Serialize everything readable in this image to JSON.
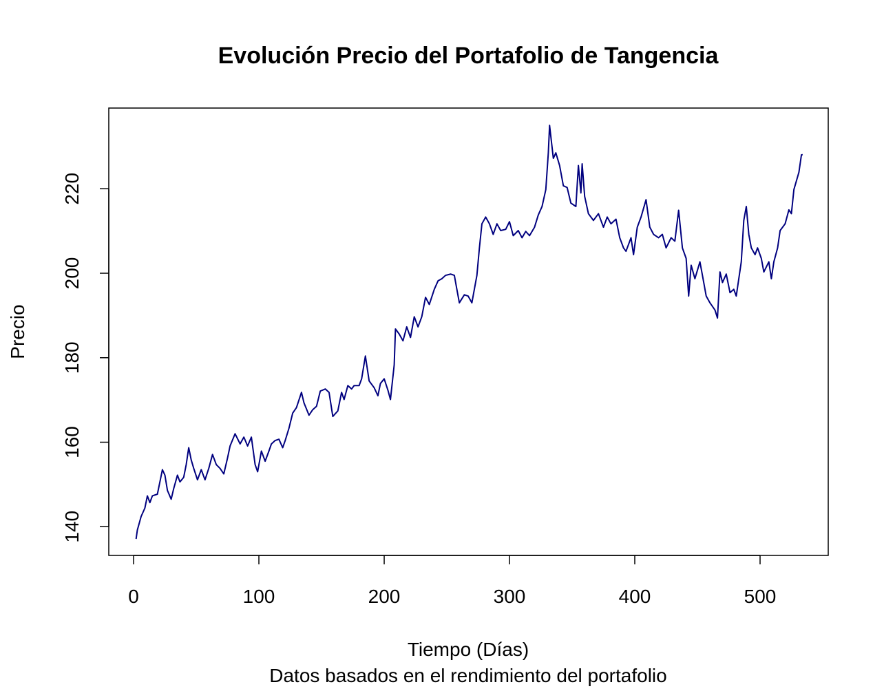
{
  "chart_data": {
    "type": "line",
    "title": "Evolución Precio del Portafolio de Tangencia",
    "x_label": "Tiempo (Días)",
    "subtitle": "Datos basados en el rendimiento del portafolio",
    "y_label": "Precio",
    "xlim": [
      -19.8,
      554.4
    ],
    "ylim": [
      133.2,
      239.1
    ],
    "xticks": [
      0,
      100,
      200,
      300,
      400,
      500
    ],
    "yticks": [
      140,
      160,
      180,
      200,
      220
    ],
    "grid": false,
    "color": "#00007f",
    "x": [
      2,
      3,
      6,
      9,
      11,
      13,
      15,
      19,
      21,
      23,
      25,
      27,
      30,
      32,
      35,
      37,
      40,
      42,
      44,
      46,
      48,
      51,
      54,
      57,
      60,
      63,
      66,
      69,
      72,
      75,
      77,
      81,
      85,
      88,
      91,
      94,
      97,
      99,
      102,
      105,
      108,
      110,
      113,
      116,
      119,
      121,
      124,
      127,
      130,
      134,
      136,
      140,
      143,
      146,
      149,
      153,
      156,
      159,
      163,
      166,
      168,
      171,
      174,
      176,
      180,
      182,
      185,
      188,
      192,
      195,
      197,
      200,
      203,
      205,
      208,
      209,
      212,
      215,
      218,
      221,
      224,
      227,
      230,
      233,
      236,
      240,
      243,
      246,
      249,
      253,
      256,
      258,
      260,
      264,
      267,
      270,
      274,
      276,
      278,
      281,
      284,
      287,
      290,
      293,
      297,
      300,
      303,
      307,
      310,
      313,
      316,
      320,
      323,
      326,
      329,
      331,
      332,
      335,
      337,
      340,
      343,
      346,
      349,
      353,
      355,
      357,
      358,
      360,
      363,
      367,
      371,
      375,
      378,
      381,
      385,
      388,
      391,
      393,
      397,
      399,
      402,
      405,
      409,
      412,
      415,
      419,
      422,
      425,
      429,
      432,
      435,
      438,
      441,
      443,
      445,
      448,
      452,
      454,
      457,
      460,
      464,
      466,
      468,
      470,
      473,
      476,
      479,
      481,
      485,
      487,
      489,
      491,
      493,
      496,
      498,
      501,
      503,
      507,
      509,
      511,
      514,
      516,
      520,
      523,
      525,
      527,
      531,
      533,
      534
    ],
    "values": [
      137.1,
      139.2,
      142.4,
      144.4,
      147.3,
      145.7,
      147.3,
      147.7,
      150.6,
      153.5,
      152.2,
      148.6,
      146.5,
      149.0,
      152.2,
      150.6,
      151.7,
      154.7,
      158.7,
      155.8,
      153.8,
      151.1,
      153.5,
      151.1,
      153.8,
      157.1,
      154.7,
      153.8,
      152.5,
      156.3,
      159.1,
      162.0,
      159.6,
      161.2,
      159.1,
      161.2,
      154.7,
      153.0,
      157.9,
      155.5,
      157.9,
      159.6,
      160.4,
      160.7,
      158.7,
      160.4,
      163.3,
      166.9,
      168.2,
      171.8,
      169.3,
      166.4,
      167.7,
      168.5,
      172.1,
      172.6,
      171.8,
      166.1,
      167.4,
      171.8,
      170.1,
      173.4,
      172.6,
      173.4,
      173.4,
      175.0,
      180.4,
      174.5,
      172.9,
      171.0,
      173.9,
      175.0,
      172.3,
      170.1,
      178.3,
      186.8,
      185.6,
      184.0,
      187.3,
      184.8,
      189.7,
      187.3,
      189.7,
      194.3,
      192.6,
      196.2,
      198.2,
      198.7,
      199.5,
      199.8,
      199.5,
      196.2,
      193.0,
      194.9,
      194.6,
      193.0,
      199.5,
      206.0,
      211.7,
      213.3,
      211.7,
      209.2,
      211.7,
      210.1,
      210.4,
      212.2,
      208.9,
      210.1,
      208.4,
      209.9,
      208.9,
      210.9,
      213.8,
      215.8,
      219.8,
      228.5,
      235.0,
      227.2,
      228.5,
      225.5,
      220.7,
      220.3,
      216.6,
      215.8,
      225.5,
      219.0,
      225.9,
      218.2,
      214.1,
      212.5,
      214.1,
      210.9,
      213.3,
      211.7,
      212.8,
      208.4,
      206.0,
      205.2,
      208.4,
      204.4,
      210.9,
      213.3,
      217.4,
      210.9,
      209.2,
      208.4,
      209.2,
      206.0,
      208.4,
      207.6,
      214.9,
      206.0,
      203.5,
      194.6,
      201.9,
      198.7,
      202.7,
      199.5,
      194.6,
      193.0,
      191.3,
      189.4,
      200.3,
      197.8,
      199.8,
      195.4,
      196.2,
      194.6,
      202.7,
      212.5,
      215.8,
      209.2,
      206.0,
      204.4,
      206.0,
      203.5,
      200.3,
      202.7,
      198.7,
      202.7,
      206.0,
      210.1,
      211.7,
      215.0,
      214.1,
      219.8,
      223.9,
      228.0,
      228.1
    ]
  }
}
